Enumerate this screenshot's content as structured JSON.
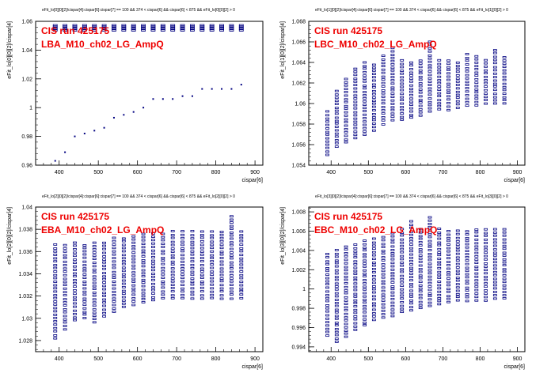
{
  "chart_data": [
    {
      "type": "scatter",
      "title": "eFit_lo[0][0][2]/cispar[4]:cispar[6]:cispar[7] == 100 && 374 < cispar[6] && cispar[6] < 875 && eFit_lo[0][0][2] > 0",
      "annotation": [
        "CIS run 425175",
        "LBA_M10_ch02_LG_AmpQ"
      ],
      "xlabel": "cispar[6]",
      "ylabel": "eFit_lo[0][0][2]/cispar[4]",
      "xlim": [
        340,
        920
      ],
      "ylim": [
        0.96,
        1.06
      ],
      "xticks": [
        "400",
        "500",
        "600",
        "700",
        "800",
        "900"
      ],
      "yticks": [
        "0.96",
        "0.98",
        "1",
        "1.02",
        "1.04",
        "1.06"
      ],
      "series": [
        {
          "marker": "box",
          "x": [
            390,
            415,
            440,
            465,
            490,
            515,
            540,
            565,
            590,
            615,
            640,
            665,
            690,
            715,
            740,
            765,
            790,
            815,
            840,
            865
          ],
          "y": [
            1.0555,
            1.0555,
            1.0555,
            1.0555,
            1.0555,
            1.0555,
            1.0555,
            1.0555,
            1.0555,
            1.0555,
            1.0555,
            1.0555,
            1.0555,
            1.0555,
            1.0555,
            1.0555,
            1.0555,
            1.0555,
            1.0555,
            1.0555
          ]
        },
        {
          "marker": "dot",
          "x": [
            390,
            415,
            440,
            465,
            490,
            515,
            540,
            565,
            590,
            615,
            640,
            665,
            690,
            715,
            740,
            765,
            790,
            815,
            840,
            865
          ],
          "y": [
            0.963,
            0.969,
            0.98,
            0.982,
            0.984,
            0.986,
            0.993,
            0.995,
            0.997,
            1.0,
            1.006,
            1.006,
            1.006,
            1.008,
            1.008,
            1.013,
            1.013,
            1.013,
            1.013,
            1.016
          ]
        }
      ]
    },
    {
      "type": "scatter",
      "title": "eFit_lo[1][0][2]/cispar[4]:cispar[6]:cispar[7] == 100 && 374 < cispar[6] && cispar[6] < 875 && eFit_lo[1][0][2] > 0",
      "annotation": [
        "CIS run 425175",
        "LBC_M10_ch02_LG_AmpQ"
      ],
      "xlabel": "cispar[6]",
      "ylabel": "eFit_lo[1][0][2]/cispar[4]",
      "xlim": [
        340,
        920
      ],
      "ylim": [
        1.054,
        1.068
      ],
      "xticks": [
        "400",
        "500",
        "600",
        "700",
        "800",
        "900"
      ],
      "yticks": [
        "1.054",
        "1.056",
        "1.058",
        "1.06",
        "1.062",
        "1.064",
        "1.066",
        "1.068"
      ],
      "columns": {
        "x": [
          390,
          415,
          440,
          465,
          490,
          515,
          540,
          565,
          590,
          615,
          640,
          665,
          690,
          715,
          740,
          765,
          790,
          815,
          840,
          865
        ],
        "ymin": [
          1.055,
          1.0558,
          1.0562,
          1.0566,
          1.057,
          1.0574,
          1.058,
          1.0584,
          1.0584,
          1.0586,
          1.0588,
          1.0592,
          1.0594,
          1.0594,
          1.0596,
          1.0598,
          1.0598,
          1.06,
          1.06,
          1.06
        ],
        "ymax": [
          1.0592,
          1.0612,
          1.0624,
          1.0634,
          1.064,
          1.0638,
          1.0646,
          1.0654,
          1.0642,
          1.064,
          1.0642,
          1.066,
          1.0642,
          1.0642,
          1.064,
          1.0648,
          1.0646,
          1.0642,
          1.0652,
          1.0645
        ]
      }
    },
    {
      "type": "scatter",
      "title": "eFit_lo[2][0][2]/cispar[4]:cispar[6]:cispar[7] == 100 && 374 < cispar[6] && cispar[6] < 875 && eFit_lo[2][0][2] > 0",
      "annotation": [
        "CIS run 425175",
        "EBA_M10_ch02_LG_AmpQ"
      ],
      "xlabel": "cispar[6]",
      "ylabel": "eFit_lo[2][0][2]/cispar[4]",
      "xlim": [
        340,
        920
      ],
      "ylim": [
        1.027,
        1.04
      ],
      "xticks": [
        "400",
        "500",
        "600",
        "700",
        "800",
        "900"
      ],
      "yticks": [
        "1.028",
        "1.03",
        "1.032",
        "1.034",
        "1.036",
        "1.038",
        "1.04"
      ],
      "columns": {
        "x": [
          390,
          415,
          440,
          465,
          490,
          515,
          540,
          565,
          590,
          615,
          640,
          665,
          690,
          715,
          740,
          765,
          790,
          815,
          840,
          865
        ],
        "ymin": [
          1.0282,
          1.029,
          1.0298,
          1.03,
          1.0296,
          1.0302,
          1.0306,
          1.031,
          1.0312,
          1.0314,
          1.0316,
          1.0318,
          1.0318,
          1.0318,
          1.0318,
          1.0318,
          1.0318,
          1.0318,
          1.0318,
          1.0318
        ],
        "ymax": [
          1.0366,
          1.0366,
          1.0368,
          1.0366,
          1.0368,
          1.0368,
          1.0372,
          1.0372,
          1.0374,
          1.0376,
          1.0376,
          1.0376,
          1.0378,
          1.0378,
          1.0378,
          1.0378,
          1.0378,
          1.0378,
          1.0392,
          1.0378
        ]
      }
    },
    {
      "type": "scatter",
      "title": "eFit_lo[3][0][2]/cispar[4]:cispar[6]:cispar[7] == 100 && 374 < cispar[6] && cispar[6] < 875 && eFit_lo[3][0][2] > 0",
      "annotation": [
        "CIS run 425175",
        "EBC_M10_ch02_LG_AmpQ"
      ],
      "xlabel": "cispar[6]",
      "ylabel": "eFit_lo[3][0][2]/cispar[4]",
      "xlim": [
        340,
        920
      ],
      "ylim": [
        0.9935,
        1.0085
      ],
      "xticks": [
        "400",
        "500",
        "600",
        "700",
        "800",
        "900"
      ],
      "yticks": [
        "0.994",
        "0.996",
        "0.998",
        "1",
        "1.002",
        "1.004",
        "1.006",
        "1.008"
      ],
      "columns": {
        "x": [
          390,
          415,
          440,
          465,
          490,
          515,
          540,
          565,
          590,
          615,
          640,
          665,
          690,
          715,
          740,
          765,
          790,
          815,
          840,
          865
        ],
        "ymin": [
          0.9952,
          0.9945,
          0.995,
          0.9958,
          0.9962,
          0.9968,
          0.997,
          0.9972,
          0.9976,
          0.9978,
          0.998,
          0.9982,
          0.9984,
          0.9986,
          0.9988,
          0.9988,
          0.9988,
          0.9988,
          0.999,
          0.999
        ],
        "ymax": [
          1.0036,
          1.004,
          1.0044,
          1.0046,
          1.005,
          1.0052,
          1.0054,
          1.0058,
          1.0062,
          1.007,
          1.0062,
          1.0074,
          1.0062,
          1.006,
          1.006,
          1.006,
          1.0062,
          1.0062,
          1.0062,
          1.0062
        ]
      }
    }
  ]
}
